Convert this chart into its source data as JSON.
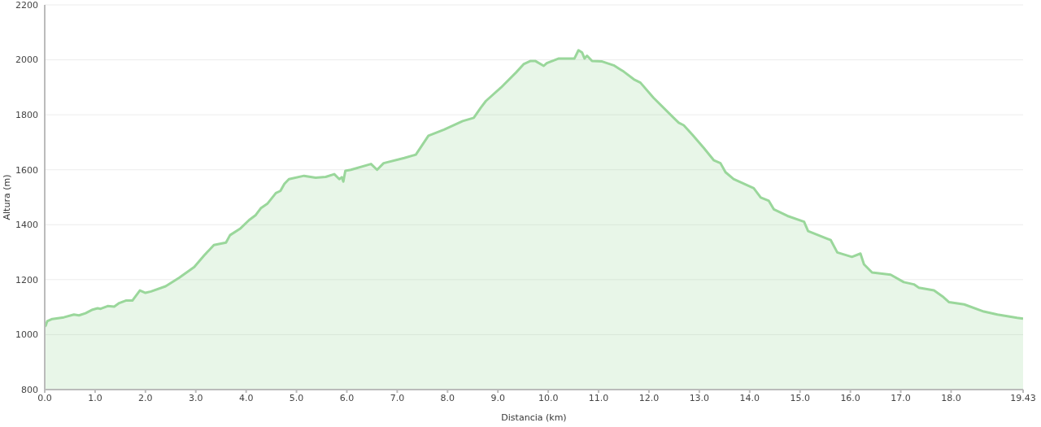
{
  "chart_data": {
    "type": "area",
    "xlabel": "Distancia   (km)",
    "ylabel": "Altura (m)",
    "x": [
      0,
      0.02,
      0.05,
      0.15,
      0.38,
      0.58,
      0.68,
      0.81,
      0.95,
      1.05,
      1.11,
      1.25,
      1.38,
      1.48,
      1.61,
      1.74,
      1.89,
      2.0,
      2.11,
      2.4,
      2.67,
      2.97,
      3.17,
      3.36,
      3.6,
      3.68,
      3.89,
      4.06,
      4.19,
      4.29,
      4.42,
      4.59,
      4.68,
      4.76,
      4.85,
      5.15,
      5.38,
      5.58,
      5.75,
      5.85,
      5.9,
      5.93,
      5.97,
      6.08,
      6.48,
      6.6,
      6.73,
      7.14,
      7.37,
      7.62,
      7.93,
      8.3,
      8.52,
      8.66,
      8.76,
      9.06,
      9.36,
      9.51,
      9.65,
      9.74,
      9.91,
      9.97,
      10.21,
      10.52,
      10.6,
      10.67,
      10.72,
      10.77,
      10.87,
      11.07,
      11.3,
      11.5,
      11.7,
      11.83,
      12.09,
      12.49,
      12.59,
      12.69,
      12.86,
      13.09,
      13.29,
      13.42,
      13.52,
      13.68,
      14.08,
      14.22,
      14.38,
      14.48,
      14.75,
      15.08,
      15.16,
      15.61,
      15.74,
      16.03,
      16.2,
      16.27,
      16.43,
      16.8,
      17.06,
      17.26,
      17.36,
      17.66,
      17.83,
      17.96,
      18.26,
      18.65,
      18.92,
      19.31,
      19.43
    ],
    "series": [
      {
        "color": "#9ad79b",
        "values": [
          1030,
          1033,
          1049,
          1057,
          1063,
          1073,
          1070,
          1078,
          1091,
          1096,
          1094,
          1104,
          1102,
          1115,
          1124,
          1124,
          1161,
          1152,
          1157,
          1176,
          1207,
          1246,
          1289,
          1326,
          1335,
          1362,
          1387,
          1417,
          1435,
          1460,
          1476,
          1515,
          1523,
          1549,
          1566,
          1578,
          1571,
          1574,
          1584,
          1566,
          1573,
          1557,
          1596,
          1600,
          1621,
          1600,
          1624,
          1643,
          1655,
          1724,
          1746,
          1777,
          1789,
          1826,
          1850,
          1899,
          1954,
          1984,
          1996,
          1996,
          1978,
          1988,
          2005,
          2005,
          2035,
          2027,
          2005,
          2015,
          1996,
          1994,
          1980,
          1957,
          1929,
          1917,
          1862,
          1789,
          1771,
          1762,
          1728,
          1679,
          1634,
          1624,
          1591,
          1566,
          1533,
          1499,
          1487,
          1456,
          1432,
          1411,
          1377,
          1344,
          1299,
          1283,
          1295,
          1256,
          1226,
          1218,
          1191,
          1183,
          1171,
          1161,
          1139,
          1118,
          1110,
          1084,
          1073,
          1061,
          1058
        ]
      }
    ],
    "xlim": [
      0,
      19.43
    ],
    "xticks": [
      {
        "value": 0,
        "label": "0.0"
      },
      {
        "value": 1,
        "label": "1.0"
      },
      {
        "value": 2,
        "label": "2.0"
      },
      {
        "value": 3,
        "label": "3.0"
      },
      {
        "value": 4,
        "label": "4.0"
      },
      {
        "value": 5,
        "label": "5.0"
      },
      {
        "value": 6,
        "label": "6.0"
      },
      {
        "value": 7,
        "label": "7.0"
      },
      {
        "value": 8,
        "label": "8.0"
      },
      {
        "value": 9,
        "label": "9.0"
      },
      {
        "value": 10,
        "label": "10.0"
      },
      {
        "value": 11,
        "label": "11.0"
      },
      {
        "value": 12,
        "label": "12.0"
      },
      {
        "value": 13,
        "label": "13.0"
      },
      {
        "value": 14,
        "label": "14.0"
      },
      {
        "value": 15,
        "label": "15.0"
      },
      {
        "value": 16,
        "label": "16.0"
      },
      {
        "value": 17,
        "label": "17.0"
      },
      {
        "value": 18,
        "label": "18.0"
      },
      19.43
    ],
    "ylim": [
      800,
      2200
    ],
    "yticks": [
      800,
      1000,
      1200,
      1400,
      1600,
      1800,
      2000,
      2200
    ],
    "grid": "y",
    "legend": false,
    "marker": "none",
    "line_style": "solid"
  }
}
